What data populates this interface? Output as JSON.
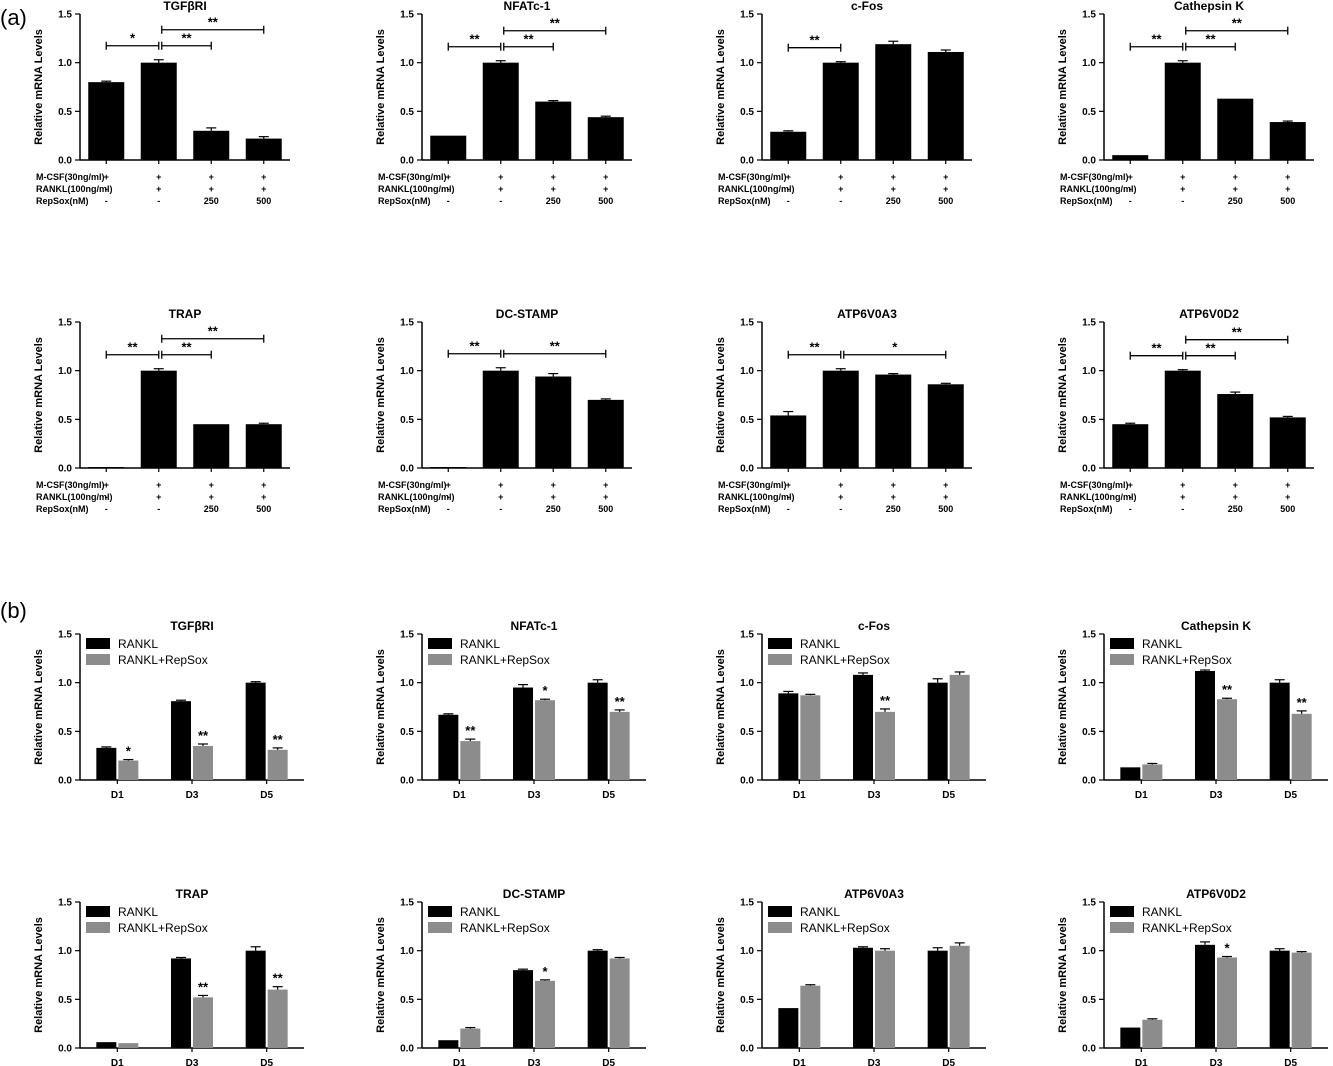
{
  "panels": {
    "a": "(a)",
    "b": "(b)"
  },
  "colors": {
    "rankl": "#000000",
    "repsox": "#8c8c8c"
  },
  "chart_data": [
    {
      "type": "bar",
      "panel": "a",
      "title": "TGFβRI",
      "ylabel": "Relative mRNA Levels",
      "ylim": [
        0,
        1.5
      ],
      "yticks": [
        "0.0",
        "0.5",
        "1.0",
        "1.5"
      ],
      "values": [
        0.8,
        1.0,
        0.3,
        0.22
      ],
      "errors": [
        0.01,
        0.03,
        0.03,
        0.02
      ],
      "conditions": [
        {
          "label": "M-CSF(30ng/ml)",
          "values": [
            "+",
            "+",
            "+",
            "+"
          ]
        },
        {
          "label": "RANKL(100ng/ml)",
          "values": [
            "-",
            "+",
            "+",
            "+"
          ]
        },
        {
          "label": "RepSox(nM)",
          "values": [
            "-",
            "-",
            "250",
            "500"
          ]
        }
      ],
      "brackets": [
        {
          "from": 0,
          "to": 1,
          "label": "*"
        },
        {
          "from": 1,
          "to": 2,
          "label": "**"
        },
        {
          "from": 1,
          "to": 3,
          "label": "**"
        }
      ]
    },
    {
      "type": "bar",
      "panel": "a",
      "title": "NFATc-1",
      "ylabel": "Relative mRNA Levels",
      "ylim": [
        0,
        1.5
      ],
      "yticks": [
        "0.0",
        "0.5",
        "1.0",
        "1.5"
      ],
      "values": [
        0.25,
        1.0,
        0.6,
        0.44
      ],
      "errors": [
        0,
        0.02,
        0.01,
        0.01
      ],
      "conditions": [
        {
          "label": "M-CSF(30ng/ml)",
          "values": [
            "+",
            "+",
            "+",
            "+"
          ]
        },
        {
          "label": "RANKL(100ng/ml)",
          "values": [
            "-",
            "+",
            "+",
            "+"
          ]
        },
        {
          "label": "RepSox(nM)",
          "values": [
            "-",
            "-",
            "250",
            "500"
          ]
        }
      ],
      "brackets": [
        {
          "from": 0,
          "to": 1,
          "label": "**"
        },
        {
          "from": 1,
          "to": 2,
          "label": "**"
        },
        {
          "from": 1,
          "to": 3,
          "label": "**"
        }
      ]
    },
    {
      "type": "bar",
      "panel": "a",
      "title": "c-Fos",
      "ylabel": "Relative mRNA Levels",
      "ylim": [
        0,
        1.5
      ],
      "yticks": [
        "0.0",
        "0.5",
        "1.0",
        "1.5"
      ],
      "values": [
        0.29,
        1.0,
        1.19,
        1.11
      ],
      "errors": [
        0.01,
        0.01,
        0.03,
        0.02
      ],
      "conditions": [
        {
          "label": "M-CSF(30ng/ml)",
          "values": [
            "+",
            "+",
            "+",
            "+"
          ]
        },
        {
          "label": "RANKL(100ng/ml)",
          "values": [
            "-",
            "+",
            "+",
            "+"
          ]
        },
        {
          "label": "RepSox(nM)",
          "values": [
            "-",
            "-",
            "250",
            "500"
          ]
        }
      ],
      "brackets": [
        {
          "from": 0,
          "to": 1,
          "label": "**"
        }
      ]
    },
    {
      "type": "bar",
      "panel": "a",
      "title": "Cathepsin K",
      "ylabel": "Relative mRNA Levels",
      "ylim": [
        0,
        1.5
      ],
      "yticks": [
        "0.0",
        "0.5",
        "1.0",
        "1.5"
      ],
      "values": [
        0.05,
        1.0,
        0.63,
        0.39
      ],
      "errors": [
        0,
        0.02,
        0,
        0.01
      ],
      "conditions": [
        {
          "label": "M-CSF(30ng/ml)",
          "values": [
            "+",
            "+",
            "+",
            "+"
          ]
        },
        {
          "label": "RANKL(100ng/ml)",
          "values": [
            "-",
            "+",
            "+",
            "+"
          ]
        },
        {
          "label": "RepSox(nM)",
          "values": [
            "-",
            "-",
            "250",
            "500"
          ]
        }
      ],
      "brackets": [
        {
          "from": 0,
          "to": 1,
          "label": "**"
        },
        {
          "from": 1,
          "to": 2,
          "label": "**"
        },
        {
          "from": 1,
          "to": 3,
          "label": "**"
        }
      ]
    },
    {
      "type": "bar",
      "panel": "a",
      "title": "TRAP",
      "ylabel": "Relative mRNA Levels",
      "ylim": [
        0,
        1.5
      ],
      "yticks": [
        "0.0",
        "0.5",
        "1.0",
        "1.5"
      ],
      "values": [
        0.01,
        1.0,
        0.45,
        0.45
      ],
      "errors": [
        0,
        0.02,
        0,
        0.01
      ],
      "conditions": [
        {
          "label": "M-CSF(30ng/ml)",
          "values": [
            "+",
            "+",
            "+",
            "+"
          ]
        },
        {
          "label": "RANKL(100ng/ml)",
          "values": [
            "-",
            "+",
            "+",
            "+"
          ]
        },
        {
          "label": "RepSox(nM)",
          "values": [
            "-",
            "-",
            "250",
            "500"
          ]
        }
      ],
      "brackets": [
        {
          "from": 0,
          "to": 1,
          "label": "**"
        },
        {
          "from": 1,
          "to": 2,
          "label": "**"
        },
        {
          "from": 1,
          "to": 3,
          "label": "**"
        }
      ]
    },
    {
      "type": "bar",
      "panel": "a",
      "title": "DC-STAMP",
      "ylabel": "Relative mRNA Levels",
      "ylim": [
        0,
        1.5
      ],
      "yticks": [
        "0.0",
        "0.5",
        "1.0",
        "1.5"
      ],
      "values": [
        0.01,
        1.0,
        0.94,
        0.7
      ],
      "errors": [
        0,
        0.03,
        0.03,
        0.01
      ],
      "conditions": [
        {
          "label": "M-CSF(30ng/ml)",
          "values": [
            "+",
            "+",
            "+",
            "+"
          ]
        },
        {
          "label": "RANKL(100ng/ml)",
          "values": [
            "-",
            "+",
            "+",
            "+"
          ]
        },
        {
          "label": "RepSox(nM)",
          "values": [
            "-",
            "-",
            "250",
            "500"
          ]
        }
      ],
      "brackets": [
        {
          "from": 0,
          "to": 1,
          "label": "**"
        },
        {
          "from": 1,
          "to": 3,
          "label": "**"
        }
      ]
    },
    {
      "type": "bar",
      "panel": "a",
      "title": "ATP6V0A3",
      "ylabel": "Relative mRNA Levels",
      "ylim": [
        0,
        1.5
      ],
      "yticks": [
        "0.0",
        "0.5",
        "1.0",
        "1.5"
      ],
      "values": [
        0.54,
        1.0,
        0.96,
        0.86
      ],
      "errors": [
        0.04,
        0.02,
        0.01,
        0.01
      ],
      "conditions": [
        {
          "label": "M-CSF(30ng/ml)",
          "values": [
            "+",
            "+",
            "+",
            "+"
          ]
        },
        {
          "label": "RANKL(100ng/ml)",
          "values": [
            "-",
            "+",
            "+",
            "+"
          ]
        },
        {
          "label": "RepSox(nM)",
          "values": [
            "-",
            "-",
            "250",
            "500"
          ]
        }
      ],
      "brackets": [
        {
          "from": 0,
          "to": 1,
          "label": "**"
        },
        {
          "from": 1,
          "to": 3,
          "label": "*"
        }
      ]
    },
    {
      "type": "bar",
      "panel": "a",
      "title": "ATP6V0D2",
      "ylabel": "Relative mRNA Levels",
      "ylim": [
        0,
        1.5
      ],
      "yticks": [
        "0.0",
        "0.5",
        "1.0",
        "1.5"
      ],
      "values": [
        0.45,
        1.0,
        0.76,
        0.52
      ],
      "errors": [
        0.01,
        0.01,
        0.02,
        0.01
      ],
      "conditions": [
        {
          "label": "M-CSF(30ng/ml)",
          "values": [
            "+",
            "+",
            "+",
            "+"
          ]
        },
        {
          "label": "RANKL(100ng/ml)",
          "values": [
            "-",
            "+",
            "+",
            "+"
          ]
        },
        {
          "label": "RepSox(nM)",
          "values": [
            "-",
            "-",
            "250",
            "500"
          ]
        }
      ],
      "brackets": [
        {
          "from": 0,
          "to": 1,
          "label": "**"
        },
        {
          "from": 1,
          "to": 2,
          "label": "**"
        },
        {
          "from": 1,
          "to": 3,
          "label": "**"
        }
      ]
    },
    {
      "type": "bar",
      "panel": "b",
      "title": "TGFβRI",
      "ylabel": "Relative mRNA Levels",
      "ylim": [
        0,
        1.5
      ],
      "yticks": [
        "0.0",
        "0.5",
        "1.0",
        "1.5"
      ],
      "categories": [
        "D1",
        "D3",
        "D5"
      ],
      "legend": [
        "RANKL",
        "RANKL+RepSox"
      ],
      "series": [
        {
          "name": "RANKL",
          "values": [
            0.33,
            0.81,
            1.0
          ],
          "errors": [
            0.01,
            0.01,
            0.01
          ],
          "sig": [
            "",
            "",
            ""
          ]
        },
        {
          "name": "RANKL+RepSox",
          "values": [
            0.2,
            0.35,
            0.31
          ],
          "errors": [
            0.01,
            0.02,
            0.02
          ],
          "sig": [
            "*",
            "**",
            "**"
          ]
        }
      ]
    },
    {
      "type": "bar",
      "panel": "b",
      "title": "NFATc-1",
      "ylabel": "Relative mRNA Levels",
      "ylim": [
        0,
        1.5
      ],
      "yticks": [
        "0.0",
        "0.5",
        "1.0",
        "1.5"
      ],
      "categories": [
        "D1",
        "D3",
        "D5"
      ],
      "legend": [
        "RANKL",
        "RANKL+RepSox"
      ],
      "series": [
        {
          "name": "RANKL",
          "values": [
            0.67,
            0.95,
            1.0
          ],
          "errors": [
            0.01,
            0.03,
            0.03
          ],
          "sig": [
            "",
            "",
            ""
          ]
        },
        {
          "name": "RANKL+RepSox",
          "values": [
            0.4,
            0.82,
            0.7
          ],
          "errors": [
            0.02,
            0.01,
            0.02
          ],
          "sig": [
            "**",
            "*",
            "**"
          ]
        }
      ]
    },
    {
      "type": "bar",
      "panel": "b",
      "title": "c-Fos",
      "ylabel": "Relative mRNA Levels",
      "ylim": [
        0,
        1.5
      ],
      "yticks": [
        "0.0",
        "0.5",
        "1.0",
        "1.5"
      ],
      "categories": [
        "D1",
        "D3",
        "D5"
      ],
      "legend": [
        "RANKL",
        "RANKL+RepSox"
      ],
      "series": [
        {
          "name": "RANKL",
          "values": [
            0.89,
            1.08,
            1.0
          ],
          "errors": [
            0.02,
            0.02,
            0.04
          ],
          "sig": [
            "",
            "",
            ""
          ]
        },
        {
          "name": "RANKL+RepSox",
          "values": [
            0.87,
            0.7,
            1.08
          ],
          "errors": [
            0.01,
            0.03,
            0.03
          ],
          "sig": [
            "",
            "**",
            ""
          ]
        }
      ]
    },
    {
      "type": "bar",
      "panel": "b",
      "title": "Cathepsin K",
      "ylabel": "Relative mRNA Levels",
      "ylim": [
        0,
        1.5
      ],
      "yticks": [
        "0.0",
        "0.5",
        "1.0",
        "1.5"
      ],
      "categories": [
        "D1",
        "D3",
        "D5"
      ],
      "legend": [
        "RANKL",
        "RANKL+RepSox"
      ],
      "series": [
        {
          "name": "RANKL",
          "values": [
            0.13,
            1.12,
            1.0
          ],
          "errors": [
            0,
            0.01,
            0.03
          ],
          "sig": [
            "",
            "",
            ""
          ]
        },
        {
          "name": "RANKL+RepSox",
          "values": [
            0.16,
            0.83,
            0.68
          ],
          "errors": [
            0.01,
            0.01,
            0.03
          ],
          "sig": [
            "",
            "**",
            "**"
          ]
        }
      ]
    },
    {
      "type": "bar",
      "panel": "b",
      "title": "TRAP",
      "ylabel": "Relative mRNA Levels",
      "ylim": [
        0,
        1.5
      ],
      "yticks": [
        "0.0",
        "0.5",
        "1.0",
        "1.5"
      ],
      "categories": [
        "D1",
        "D3",
        "D5"
      ],
      "legend": [
        "RANKL",
        "RANKL+RepSox"
      ],
      "series": [
        {
          "name": "RANKL",
          "values": [
            0.06,
            0.92,
            1.0
          ],
          "errors": [
            0,
            0.01,
            0.04
          ],
          "sig": [
            "",
            "",
            ""
          ]
        },
        {
          "name": "RANKL+RepSox",
          "values": [
            0.05,
            0.52,
            0.6
          ],
          "errors": [
            0,
            0.02,
            0.03
          ],
          "sig": [
            "",
            "**",
            "**"
          ]
        }
      ]
    },
    {
      "type": "bar",
      "panel": "b",
      "title": "DC-STAMP",
      "ylabel": "Relative mRNA Levels",
      "ylim": [
        0,
        1.5
      ],
      "yticks": [
        "0.0",
        "0.5",
        "1.0",
        "1.5"
      ],
      "categories": [
        "D1",
        "D3",
        "D5"
      ],
      "legend": [
        "RANKL",
        "RANKL+RepSox"
      ],
      "series": [
        {
          "name": "RANKL",
          "values": [
            0.08,
            0.8,
            1.0
          ],
          "errors": [
            0,
            0.01,
            0.01
          ],
          "sig": [
            "",
            "",
            ""
          ]
        },
        {
          "name": "RANKL+RepSox",
          "values": [
            0.2,
            0.69,
            0.92
          ],
          "errors": [
            0.01,
            0.01,
            0.01
          ],
          "sig": [
            "",
            "*",
            ""
          ]
        }
      ]
    },
    {
      "type": "bar",
      "panel": "b",
      "title": "ATP6V0A3",
      "ylabel": "Relative mRNA Levels",
      "ylim": [
        0,
        1.5
      ],
      "yticks": [
        "0.0",
        "0.5",
        "1.0",
        "1.5"
      ],
      "categories": [
        "D1",
        "D3",
        "D5"
      ],
      "legend": [
        "RANKL",
        "RANKL+RepSox"
      ],
      "series": [
        {
          "name": "RANKL",
          "values": [
            0.41,
            1.03,
            1.0
          ],
          "errors": [
            0,
            0.01,
            0.03
          ],
          "sig": [
            "",
            "",
            ""
          ]
        },
        {
          "name": "RANKL+RepSox",
          "values": [
            0.64,
            1.0,
            1.05
          ],
          "errors": [
            0.01,
            0.02,
            0.03
          ],
          "sig": [
            "",
            "",
            ""
          ]
        }
      ]
    },
    {
      "type": "bar",
      "panel": "b",
      "title": "ATP6V0D2",
      "ylabel": "Relative mRNA Levels",
      "ylim": [
        0,
        1.5
      ],
      "yticks": [
        "0.0",
        "0.5",
        "1.0",
        "1.5"
      ],
      "categories": [
        "D1",
        "D3",
        "D5"
      ],
      "legend": [
        "RANKL",
        "RANKL+RepSox"
      ],
      "series": [
        {
          "name": "RANKL",
          "values": [
            0.21,
            1.06,
            1.0
          ],
          "errors": [
            0,
            0.03,
            0.02
          ],
          "sig": [
            "",
            "",
            ""
          ]
        },
        {
          "name": "RANKL+RepSox",
          "values": [
            0.29,
            0.93,
            0.98
          ],
          "errors": [
            0.01,
            0.01,
            0.01
          ],
          "sig": [
            "",
            "*",
            ""
          ]
        }
      ]
    }
  ]
}
